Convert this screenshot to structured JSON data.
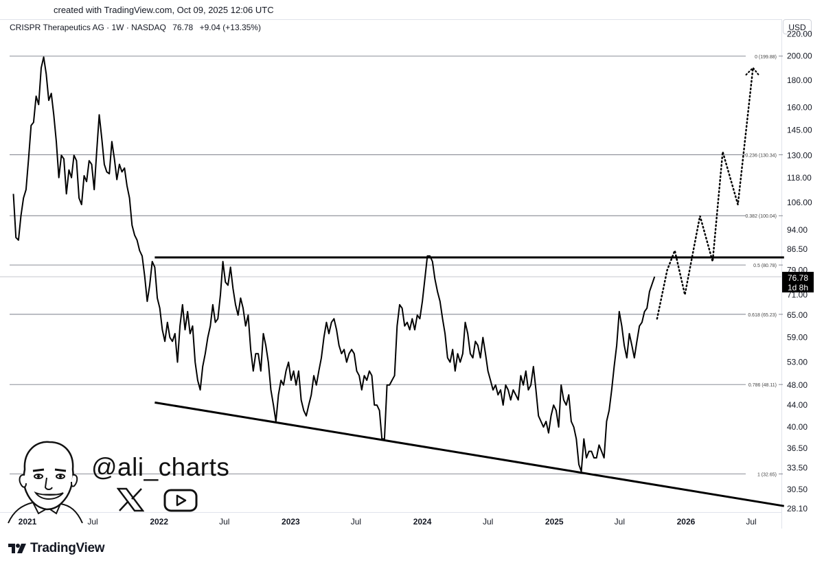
{
  "header": {
    "created_text": "created with TradingView.com, Oct 09, 2025 12:06 UTC",
    "symbol_name": "CRISPR Therapeutics AG · 1W · NASDAQ",
    "last_price": "76.78",
    "change": "+9.04 (+13.35%)",
    "currency": "USD"
  },
  "price_tag": {
    "price": "76.78",
    "countdown": "1d 8h"
  },
  "watermark": {
    "handle": "@ali_charts",
    "brand": "TradingView"
  },
  "colors": {
    "price_line": "#000000",
    "fib_line": "#787b86",
    "grid_text": "#131722",
    "background": "#ffffff"
  },
  "chart_data": {
    "type": "line",
    "title": "CRISPR Therapeutics AG · 1W · NASDAQ",
    "y_scale": "log",
    "ylim": [
      27.5,
      225
    ],
    "y_ticks": [
      "220.00",
      "200.00",
      "180.00",
      "160.00",
      "145.00",
      "130.00",
      "118.00",
      "106.00",
      "94.00",
      "86.50",
      "79.00",
      "71.00",
      "65.00",
      "59.00",
      "53.00",
      "48.00",
      "44.00",
      "40.00",
      "36.50",
      "33.50",
      "30.50",
      "28.10"
    ],
    "x_ticks": [
      {
        "label": "2021",
        "bold": true,
        "date": "2021-01-01"
      },
      {
        "label": "Jul",
        "bold": false,
        "date": "2021-07-01"
      },
      {
        "label": "2022",
        "bold": true,
        "date": "2022-01-01"
      },
      {
        "label": "Jul",
        "bold": false,
        "date": "2022-07-01"
      },
      {
        "label": "2023",
        "bold": true,
        "date": "2023-01-01"
      },
      {
        "label": "Jul",
        "bold": false,
        "date": "2023-07-01"
      },
      {
        "label": "2024",
        "bold": true,
        "date": "2024-01-01"
      },
      {
        "label": "Jul",
        "bold": false,
        "date": "2024-07-01"
      },
      {
        "label": "2025",
        "bold": true,
        "date": "2025-01-01"
      },
      {
        "label": "Jul",
        "bold": false,
        "date": "2025-07-01"
      },
      {
        "label": "2026",
        "bold": true,
        "date": "2026-01-01"
      },
      {
        "label": "Jul",
        "bold": false,
        "date": "2026-07-01"
      }
    ],
    "fib_levels": [
      {
        "label": "0 (199.88)",
        "value": 199.88
      },
      {
        "label": "0.236 (130.34)",
        "value": 130.34
      },
      {
        "label": "0.382 (100.04)",
        "value": 100.04
      },
      {
        "label": "0.5 (80.78)",
        "value": 80.78
      },
      {
        "label": "0.618 (65.23)",
        "value": 65.23
      },
      {
        "label": "0.786 (48.11)",
        "value": 48.11
      },
      {
        "label": "1 (32.65)",
        "value": 32.65
      }
    ],
    "resistance_line": {
      "start": "2021-12-20",
      "end": "2026-09-30",
      "value": 83.5
    },
    "support_line": {
      "start": [
        "2021-12-20",
        44.5
      ],
      "end": [
        "2026-09-30",
        28.4
      ]
    },
    "price_series": [
      [
        "2020-11-23",
        110
      ],
      [
        "2020-11-30",
        91
      ],
      [
        "2020-12-07",
        90
      ],
      [
        "2020-12-14",
        100
      ],
      [
        "2020-12-21",
        108
      ],
      [
        "2020-12-28",
        112
      ],
      [
        "2021-01-04",
        128
      ],
      [
        "2021-01-11",
        148
      ],
      [
        "2021-01-18",
        150
      ],
      [
        "2021-01-25",
        168
      ],
      [
        "2021-02-01",
        162
      ],
      [
        "2021-02-08",
        190
      ],
      [
        "2021-02-15",
        199
      ],
      [
        "2021-02-22",
        185
      ],
      [
        "2021-03-01",
        165
      ],
      [
        "2021-03-08",
        170
      ],
      [
        "2021-03-15",
        155
      ],
      [
        "2021-03-22",
        138
      ],
      [
        "2021-03-29",
        118
      ],
      [
        "2021-04-05",
        130
      ],
      [
        "2021-04-12",
        128
      ],
      [
        "2021-04-19",
        110
      ],
      [
        "2021-04-26",
        122
      ],
      [
        "2021-05-03",
        118
      ],
      [
        "2021-05-10",
        130
      ],
      [
        "2021-05-17",
        127
      ],
      [
        "2021-05-24",
        108
      ],
      [
        "2021-05-31",
        105
      ],
      [
        "2021-06-07",
        119
      ],
      [
        "2021-06-14",
        116
      ],
      [
        "2021-06-21",
        127
      ],
      [
        "2021-06-28",
        125
      ],
      [
        "2021-07-05",
        112
      ],
      [
        "2021-07-12",
        132
      ],
      [
        "2021-07-19",
        155
      ],
      [
        "2021-07-26",
        140
      ],
      [
        "2021-08-02",
        125
      ],
      [
        "2021-08-09",
        121
      ],
      [
        "2021-08-16",
        120
      ],
      [
        "2021-08-23",
        138
      ],
      [
        "2021-08-30",
        128
      ],
      [
        "2021-09-06",
        117
      ],
      [
        "2021-09-13",
        125
      ],
      [
        "2021-09-20",
        121
      ],
      [
        "2021-09-27",
        123
      ],
      [
        "2021-10-04",
        114
      ],
      [
        "2021-10-11",
        108
      ],
      [
        "2021-10-18",
        96
      ],
      [
        "2021-10-25",
        92
      ],
      [
        "2021-11-01",
        90
      ],
      [
        "2021-11-08",
        86
      ],
      [
        "2021-11-15",
        84
      ],
      [
        "2021-11-22",
        77
      ],
      [
        "2021-11-29",
        69
      ],
      [
        "2021-12-06",
        74
      ],
      [
        "2021-12-13",
        82
      ],
      [
        "2021-12-20",
        80
      ],
      [
        "2021-12-27",
        70
      ],
      [
        "2022-01-03",
        67
      ],
      [
        "2022-01-10",
        61
      ],
      [
        "2022-01-17",
        58
      ],
      [
        "2022-01-24",
        63
      ],
      [
        "2022-01-31",
        59
      ],
      [
        "2022-02-07",
        58
      ],
      [
        "2022-02-14",
        60
      ],
      [
        "2022-02-21",
        53
      ],
      [
        "2022-02-28",
        62
      ],
      [
        "2022-03-07",
        68
      ],
      [
        "2022-03-14",
        61
      ],
      [
        "2022-03-21",
        66
      ],
      [
        "2022-03-28",
        60
      ],
      [
        "2022-04-04",
        62
      ],
      [
        "2022-04-11",
        53
      ],
      [
        "2022-04-18",
        49
      ],
      [
        "2022-04-25",
        47
      ],
      [
        "2022-05-02",
        52
      ],
      [
        "2022-05-09",
        55
      ],
      [
        "2022-05-16",
        59
      ],
      [
        "2022-05-23",
        62
      ],
      [
        "2022-05-30",
        68
      ],
      [
        "2022-06-06",
        63
      ],
      [
        "2022-06-13",
        64
      ],
      [
        "2022-06-20",
        71
      ],
      [
        "2022-06-27",
        82
      ],
      [
        "2022-07-04",
        75
      ],
      [
        "2022-07-11",
        74
      ],
      [
        "2022-07-18",
        80
      ],
      [
        "2022-07-25",
        73
      ],
      [
        "2022-08-01",
        68
      ],
      [
        "2022-08-08",
        65
      ],
      [
        "2022-08-15",
        70
      ],
      [
        "2022-08-22",
        67
      ],
      [
        "2022-08-29",
        62
      ],
      [
        "2022-09-05",
        65
      ],
      [
        "2022-09-12",
        56
      ],
      [
        "2022-09-19",
        51
      ],
      [
        "2022-09-26",
        55
      ],
      [
        "2022-10-03",
        55
      ],
      [
        "2022-10-10",
        51
      ],
      [
        "2022-10-17",
        60
      ],
      [
        "2022-10-24",
        57
      ],
      [
        "2022-10-31",
        53
      ],
      [
        "2022-11-07",
        47
      ],
      [
        "2022-11-14",
        44
      ],
      [
        "2022-11-21",
        41
      ],
      [
        "2022-11-28",
        46
      ],
      [
        "2022-12-05",
        49
      ],
      [
        "2022-12-12",
        48
      ],
      [
        "2022-12-19",
        51
      ],
      [
        "2022-12-26",
        53
      ],
      [
        "2023-01-02",
        49
      ],
      [
        "2023-01-09",
        51
      ],
      [
        "2023-01-16",
        48
      ],
      [
        "2023-01-23",
        51
      ],
      [
        "2023-01-30",
        45
      ],
      [
        "2023-02-06",
        43
      ],
      [
        "2023-02-13",
        42
      ],
      [
        "2023-02-20",
        44
      ],
      [
        "2023-02-27",
        46
      ],
      [
        "2023-03-06",
        50
      ],
      [
        "2023-03-13",
        48
      ],
      [
        "2023-03-20",
        51
      ],
      [
        "2023-03-27",
        54
      ],
      [
        "2023-04-03",
        59
      ],
      [
        "2023-04-10",
        63
      ],
      [
        "2023-04-17",
        60
      ],
      [
        "2023-04-24",
        63
      ],
      [
        "2023-05-01",
        64
      ],
      [
        "2023-05-08",
        61
      ],
      [
        "2023-05-15",
        57
      ],
      [
        "2023-05-22",
        55
      ],
      [
        "2023-05-29",
        56
      ],
      [
        "2023-06-05",
        53
      ],
      [
        "2023-06-12",
        55
      ],
      [
        "2023-06-19",
        56
      ],
      [
        "2023-06-26",
        55
      ],
      [
        "2023-07-03",
        51
      ],
      [
        "2023-07-10",
        50
      ],
      [
        "2023-07-17",
        47
      ],
      [
        "2023-07-24",
        50
      ],
      [
        "2023-07-31",
        49
      ],
      [
        "2023-08-07",
        51
      ],
      [
        "2023-08-14",
        50
      ],
      [
        "2023-08-21",
        44
      ],
      [
        "2023-08-28",
        44
      ],
      [
        "2023-09-04",
        43
      ],
      [
        "2023-09-11",
        38
      ],
      [
        "2023-09-18",
        38
      ],
      [
        "2023-09-25",
        48
      ],
      [
        "2023-10-02",
        48
      ],
      [
        "2023-10-09",
        49
      ],
      [
        "2023-10-16",
        50
      ],
      [
        "2023-10-23",
        62
      ],
      [
        "2023-10-30",
        68
      ],
      [
        "2023-11-06",
        67
      ],
      [
        "2023-11-13",
        62
      ],
      [
        "2023-11-20",
        63
      ],
      [
        "2023-11-27",
        61
      ],
      [
        "2023-12-04",
        64
      ],
      [
        "2023-12-11",
        61
      ],
      [
        "2023-12-18",
        65
      ],
      [
        "2023-12-25",
        64
      ],
      [
        "2024-01-01",
        69
      ],
      [
        "2024-01-08",
        76
      ],
      [
        "2024-01-15",
        84
      ],
      [
        "2024-01-22",
        84
      ],
      [
        "2024-01-29",
        82
      ],
      [
        "2024-02-05",
        76
      ],
      [
        "2024-02-12",
        72
      ],
      [
        "2024-02-19",
        69
      ],
      [
        "2024-02-26",
        64
      ],
      [
        "2024-03-04",
        60
      ],
      [
        "2024-03-11",
        54
      ],
      [
        "2024-03-18",
        53
      ],
      [
        "2024-03-25",
        56
      ],
      [
        "2024-04-01",
        51
      ],
      [
        "2024-04-08",
        55
      ],
      [
        "2024-04-15",
        53
      ],
      [
        "2024-04-22",
        55
      ],
      [
        "2024-04-29",
        63
      ],
      [
        "2024-05-06",
        60
      ],
      [
        "2024-05-13",
        55
      ],
      [
        "2024-05-20",
        54
      ],
      [
        "2024-05-27",
        58
      ],
      [
        "2024-06-03",
        57
      ],
      [
        "2024-06-10",
        54
      ],
      [
        "2024-06-17",
        59
      ],
      [
        "2024-06-24",
        55
      ],
      [
        "2024-07-01",
        51
      ],
      [
        "2024-07-08",
        49
      ],
      [
        "2024-07-15",
        47
      ],
      [
        "2024-07-22",
        48
      ],
      [
        "2024-07-29",
        46
      ],
      [
        "2024-08-05",
        47
      ],
      [
        "2024-08-12",
        44
      ],
      [
        "2024-08-19",
        48
      ],
      [
        "2024-08-26",
        47
      ],
      [
        "2024-09-02",
        45
      ],
      [
        "2024-09-09",
        47
      ],
      [
        "2024-09-16",
        46
      ],
      [
        "2024-09-23",
        45
      ],
      [
        "2024-09-30",
        50
      ],
      [
        "2024-10-07",
        48
      ],
      [
        "2024-10-14",
        51
      ],
      [
        "2024-10-21",
        47
      ],
      [
        "2024-10-28",
        48
      ],
      [
        "2024-11-04",
        52
      ],
      [
        "2024-11-11",
        47
      ],
      [
        "2024-11-18",
        42
      ],
      [
        "2024-11-25",
        41
      ],
      [
        "2024-12-02",
        40
      ],
      [
        "2024-12-09",
        41
      ],
      [
        "2024-12-16",
        39
      ],
      [
        "2024-12-23",
        42
      ],
      [
        "2024-12-30",
        44
      ],
      [
        "2025-01-06",
        43
      ],
      [
        "2025-01-13",
        40
      ],
      [
        "2025-01-20",
        48
      ],
      [
        "2025-01-27",
        45
      ],
      [
        "2025-02-03",
        44
      ],
      [
        "2025-02-10",
        46
      ],
      [
        "2025-02-17",
        41
      ],
      [
        "2025-02-24",
        40
      ],
      [
        "2025-03-03",
        38
      ],
      [
        "2025-03-10",
        34
      ],
      [
        "2025-03-17",
        33
      ],
      [
        "2025-03-24",
        38
      ],
      [
        "2025-03-31",
        35
      ],
      [
        "2025-04-07",
        36
      ],
      [
        "2025-04-14",
        36
      ],
      [
        "2025-04-21",
        35
      ],
      [
        "2025-04-28",
        35
      ],
      [
        "2025-05-05",
        37
      ],
      [
        "2025-05-12",
        36
      ],
      [
        "2025-05-19",
        35
      ],
      [
        "2025-05-26",
        41
      ],
      [
        "2025-06-02",
        43
      ],
      [
        "2025-06-09",
        47
      ],
      [
        "2025-06-16",
        52
      ],
      [
        "2025-06-23",
        57
      ],
      [
        "2025-06-30",
        66
      ],
      [
        "2025-07-07",
        62
      ],
      [
        "2025-07-14",
        57
      ],
      [
        "2025-07-21",
        54
      ],
      [
        "2025-07-28",
        60
      ],
      [
        "2025-08-04",
        57
      ],
      [
        "2025-08-11",
        54
      ],
      [
        "2025-08-18",
        58
      ],
      [
        "2025-08-25",
        62
      ],
      [
        "2025-09-01",
        63
      ],
      [
        "2025-09-08",
        66
      ],
      [
        "2025-09-15",
        67
      ],
      [
        "2025-09-22",
        72
      ],
      [
        "2025-10-06",
        76.78
      ]
    ],
    "projection_path": [
      [
        "2025-10-13",
        64
      ],
      [
        "2025-11-10",
        79
      ],
      [
        "2025-12-01",
        86
      ],
      [
        "2025-12-29",
        71
      ],
      [
        "2026-02-09",
        100
      ],
      [
        "2026-03-16",
        82
      ],
      [
        "2026-04-13",
        132
      ],
      [
        "2026-05-25",
        105
      ],
      [
        "2026-07-06",
        190
      ]
    ]
  }
}
